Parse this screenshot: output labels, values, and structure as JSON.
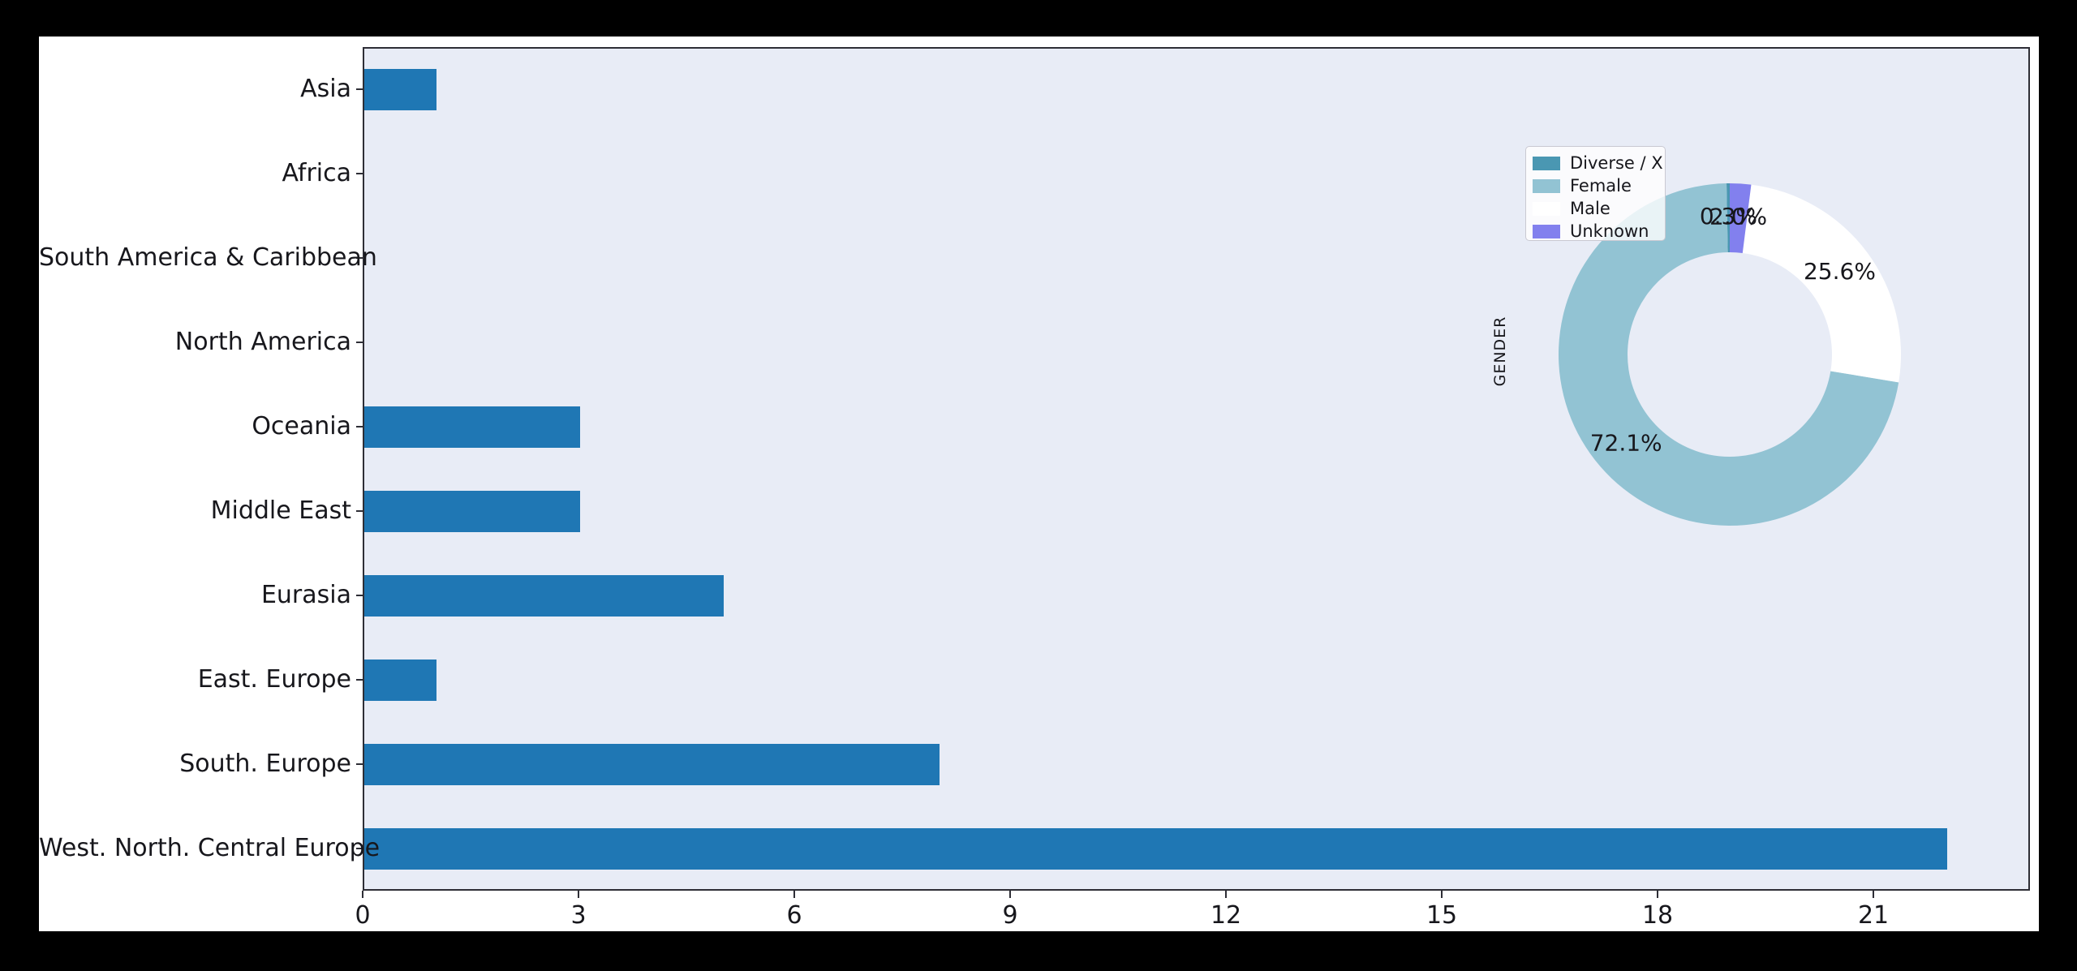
{
  "window": {
    "background": "#000000",
    "figure_background": "#ffffff"
  },
  "chart_data": [
    {
      "type": "bar",
      "orientation": "horizontal",
      "title": "",
      "xlabel": "",
      "ylabel": "",
      "categories": [
        "Asia",
        "Africa",
        "South America & Caribbean",
        "North America",
        "Oceania",
        "Middle East",
        "Eurasia",
        "East. Europe",
        "South. Europe",
        "West. North. Central Europe"
      ],
      "values": [
        1,
        0,
        0,
        0,
        3,
        3,
        5,
        1,
        8,
        22
      ],
      "x_ticks": [
        0,
        3,
        6,
        9,
        12,
        15,
        18,
        21
      ],
      "x_tick_labels": [
        "0",
        "3",
        "6",
        "9",
        "12",
        "15",
        "18",
        "21"
      ],
      "xlim": [
        0,
        23.1
      ],
      "grid": false,
      "bar_color": "#1f77b4",
      "plot_background": "#e8ecf6"
    },
    {
      "type": "pie",
      "donut": true,
      "axis_label": "GENDER",
      "start_angle": 90,
      "counterclock": true,
      "legend_position": "upper-left",
      "slices": [
        {
          "label": "Diverse / X",
          "pct": 0.3,
          "pct_label": "0.3%",
          "color": "#4a97b2"
        },
        {
          "label": "Female",
          "pct": 72.1,
          "pct_label": "72.1%",
          "color": "#92c3d3"
        },
        {
          "label": "Male",
          "pct": 25.6,
          "pct_label": "25.6%",
          "color": "#ffffff"
        },
        {
          "label": "Unknown",
          "pct": 2.0,
          "pct_label": "2.0%",
          "color": "#8280ee"
        }
      ]
    }
  ]
}
